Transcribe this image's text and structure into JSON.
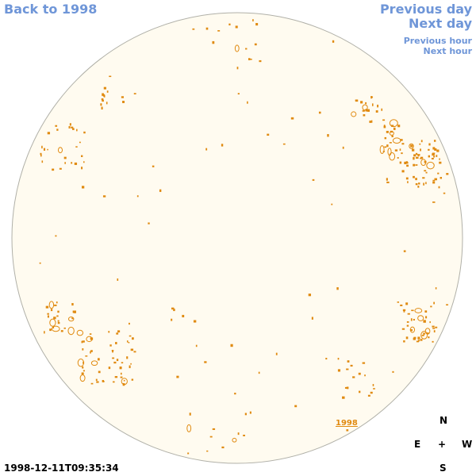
{
  "nav": {
    "back_label": "Back to 1998",
    "prev_day_label": "Previous day",
    "next_day_label": "Next day",
    "prev_hour_label": "Previous hour",
    "next_hour_label": "Next hour"
  },
  "disk": {
    "year_label": "1998",
    "fill_color": "#fffbf0",
    "rim_color": "#b0b0a8",
    "feature_color": "#e08a10"
  },
  "compass": {
    "north": "N",
    "south": "S",
    "east": "E",
    "west": "W",
    "center": "+"
  },
  "timestamp": "1998-12-11T09:35:34",
  "colors": {
    "link": "#6f96d8"
  }
}
